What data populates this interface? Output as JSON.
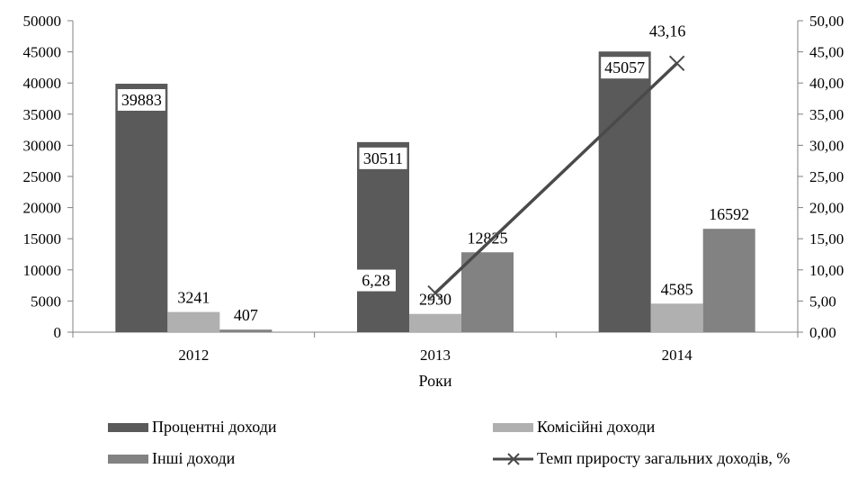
{
  "chart_data": {
    "type": "bar",
    "categories": [
      "2012",
      "2013",
      "2014"
    ],
    "xlabel": "Роки",
    "ylim": [
      0,
      50000
    ],
    "y2lim": [
      0,
      50
    ],
    "y_ticks": [
      "0",
      "5000",
      "10000",
      "15000",
      "20000",
      "25000",
      "30000",
      "35000",
      "40000",
      "45000",
      "50000"
    ],
    "y2_ticks": [
      "0,00",
      "5,00",
      "10,00",
      "15,00",
      "20,00",
      "25,00",
      "30,00",
      "35,00",
      "40,00",
      "45,00",
      "50,00"
    ],
    "series": [
      {
        "name": "Процентні доходи",
        "values": [
          39883,
          30511,
          45057
        ],
        "labels": [
          "39883",
          "30511",
          "45057"
        ],
        "color": "#5a5a5a"
      },
      {
        "name": "Комісійні доходи",
        "values": [
          3241,
          2930,
          4585
        ],
        "labels": [
          "3241",
          "2930",
          "4585"
        ],
        "color": "#b0b0b0"
      },
      {
        "name": "Інші доходи",
        "values": [
          407,
          12825,
          16592
        ],
        "labels": [
          "407",
          "12825",
          "16592"
        ],
        "color": "#828282"
      }
    ],
    "line_series": {
      "name": "Темп приросту загальних доходів, %",
      "x": [
        "2013",
        "2014"
      ],
      "values": [
        6.28,
        43.16
      ],
      "labels": [
        "6,28",
        "43,16"
      ],
      "color": "#4a4a4a",
      "marker": "x"
    },
    "legend_position": "bottom",
    "grid": false
  }
}
